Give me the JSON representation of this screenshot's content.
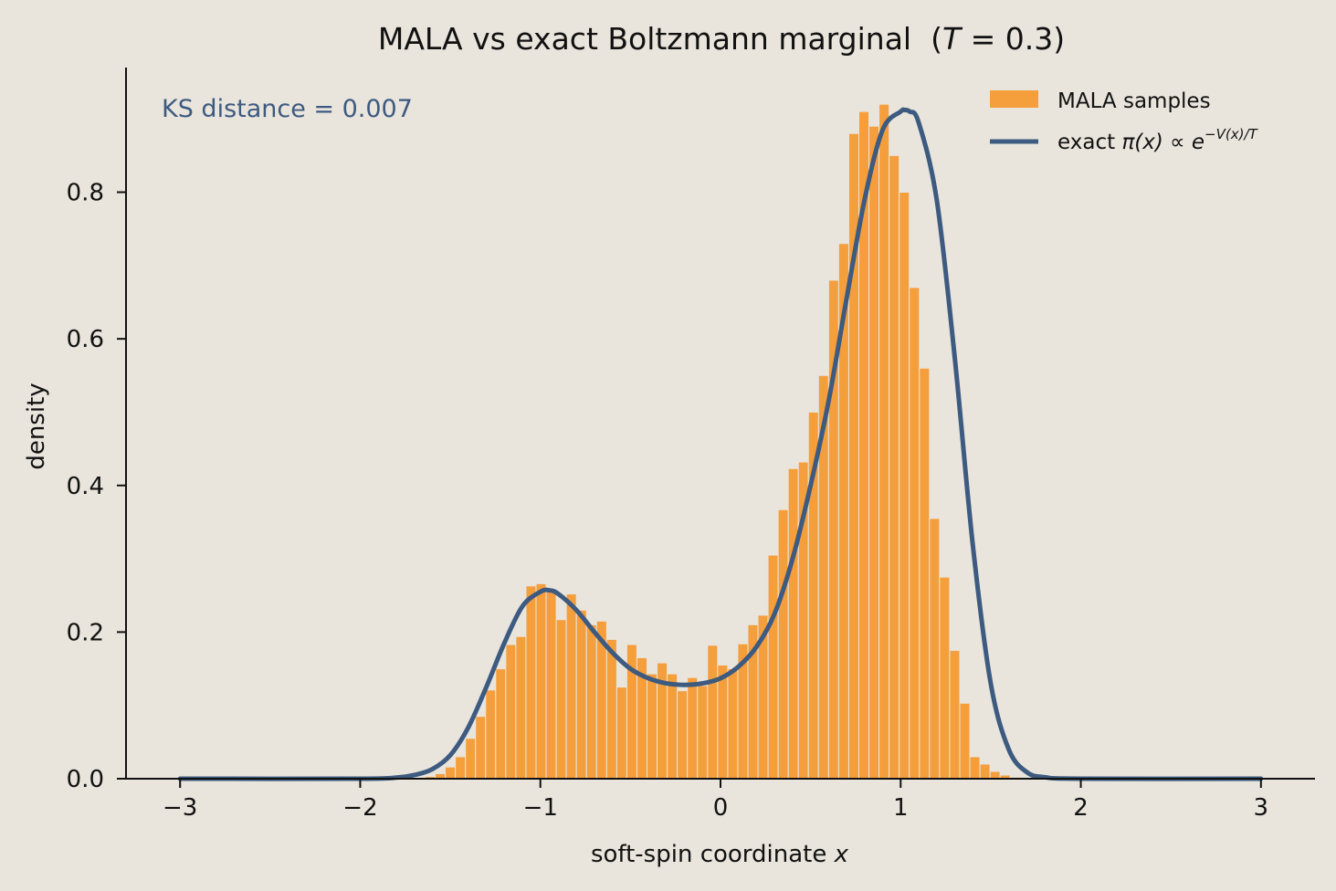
{
  "chart_data": {
    "type": "bar",
    "title": "MALA vs exact Boltzmann marginal",
    "title_annotation_prefix": "(",
    "title_annotation_var": "T",
    "title_annotation_rest": " = 0.3)",
    "xlabel": "soft-spin coordinate",
    "xlabel_var": "x",
    "ylabel": "density",
    "annotation": "KS distance = 0.007",
    "xlim": [
      -3.3,
      3.3
    ],
    "ylim": [
      0,
      0.97
    ],
    "xticks": [
      -3,
      -2,
      -1,
      0,
      1,
      2,
      3
    ],
    "xtick_labels": [
      "−3",
      "−2",
      "−1",
      "0",
      "1",
      "2",
      "3"
    ],
    "yticks": [
      0.0,
      0.2,
      0.4,
      0.6,
      0.8
    ],
    "ytick_labels": [
      "0.0",
      "0.2",
      "0.4",
      "0.6",
      "0.8"
    ],
    "grid": false,
    "legend_position": "top-right",
    "legend": {
      "bars_label": "MALA samples",
      "line_label_text": "exact",
      "line_label_math": "π(x) ∝ e",
      "line_label_sup": "−V(x)/T"
    },
    "colors": {
      "bars": "#f59e3c",
      "line": "#3d5a80",
      "annotation": "#3d5a80",
      "background": "#e9e5dc"
    },
    "histogram": {
      "bin_width": 0.056,
      "bins_x_start": [
        -1.64,
        -1.584,
        -1.528,
        -1.472,
        -1.416,
        -1.36,
        -1.304,
        -1.248,
        -1.192,
        -1.136,
        -1.08,
        -1.024,
        -0.968,
        -0.912,
        -0.856,
        -0.8,
        -0.744,
        -0.688,
        -0.632,
        -0.576,
        -0.52,
        -0.464,
        -0.408,
        -0.352,
        -0.296,
        -0.24,
        -0.184,
        -0.128,
        -0.072,
        -0.016,
        0.04,
        0.096,
        0.152,
        0.208,
        0.264,
        0.32,
        0.376,
        0.432,
        0.488,
        0.544,
        0.6,
        0.656,
        0.712,
        0.768,
        0.824,
        0.88,
        0.936,
        0.992,
        1.048,
        1.104,
        1.16,
        1.216,
        1.272,
        1.328,
        1.384,
        1.44,
        1.496,
        1.552,
        1.608,
        1.664
      ],
      "values": [
        0.003,
        0.007,
        0.016,
        0.03,
        0.055,
        0.085,
        0.121,
        0.15,
        0.183,
        0.194,
        0.263,
        0.266,
        0.257,
        0.217,
        0.252,
        0.23,
        0.21,
        0.215,
        0.19,
        0.125,
        0.183,
        0.165,
        0.143,
        0.158,
        0.143,
        0.12,
        0.138,
        0.127,
        0.182,
        0.155,
        0.15,
        0.184,
        0.21,
        0.223,
        0.305,
        0.367,
        0.423,
        0.432,
        0.5,
        0.55,
        0.68,
        0.73,
        0.88,
        0.91,
        0.89,
        0.92,
        0.85,
        0.8,
        0.67,
        0.56,
        0.355,
        0.275,
        0.175,
        0.103,
        0.03,
        0.02,
        0.01,
        0.005,
        0.002,
        0.001
      ]
    },
    "line": {
      "x": [
        -3.0,
        -2.0,
        -1.8,
        -1.7,
        -1.6,
        -1.5,
        -1.4,
        -1.3,
        -1.2,
        -1.1,
        -1.0,
        -0.95,
        -0.9,
        -0.8,
        -0.7,
        -0.6,
        -0.5,
        -0.4,
        -0.3,
        -0.2,
        -0.1,
        0.0,
        0.1,
        0.2,
        0.3,
        0.4,
        0.5,
        0.6,
        0.7,
        0.8,
        0.9,
        1.0,
        1.02,
        1.05,
        1.1,
        1.2,
        1.3,
        1.4,
        1.5,
        1.6,
        1.7,
        1.8,
        2.0,
        3.0
      ],
      "y": [
        0.0,
        0.0,
        0.0015,
        0.005,
        0.013,
        0.032,
        0.07,
        0.125,
        0.185,
        0.235,
        0.255,
        0.257,
        0.252,
        0.23,
        0.2,
        0.172,
        0.15,
        0.137,
        0.13,
        0.128,
        0.13,
        0.137,
        0.153,
        0.18,
        0.225,
        0.3,
        0.4,
        0.515,
        0.655,
        0.79,
        0.885,
        0.91,
        0.912,
        0.91,
        0.895,
        0.79,
        0.575,
        0.32,
        0.13,
        0.04,
        0.009,
        0.002,
        0.0,
        0.0
      ]
    }
  }
}
